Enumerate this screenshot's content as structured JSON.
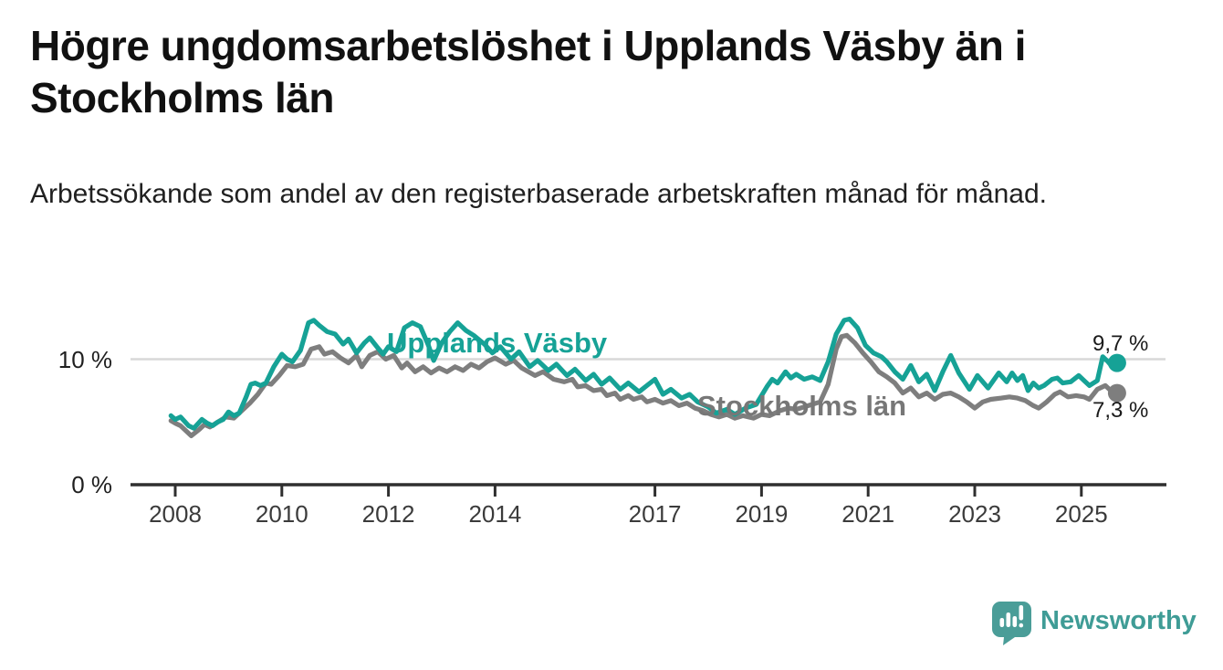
{
  "header": {
    "title": "Högre ungdomsarbetslöshet i Upplands Väsby än i Stockholms län",
    "subtitle": "Arbetssökande som andel av den registerbaserade arbetskraften månad för månad."
  },
  "branding": {
    "logo_text": "Newsworthy",
    "logo_icon": "newsworthy-speech-bubble-bar-chart-icon",
    "logo_color": "#4a9d98",
    "logo_text_color": "#3f9c96"
  },
  "chart_data": {
    "type": "line",
    "title": "Högre ungdomsarbetslöshet i Upplands Väsby än i Stockholms län",
    "subtitle": "Arbetssökande som andel av den registerbaserade arbetskraften månad för månad.",
    "unit": "%",
    "grid": "horizontal-10-only",
    "legend_position": "inline-on-lines",
    "xlim": [
      2007.8,
      2026.1
    ],
    "ylim": [
      0,
      14.5
    ],
    "x_axis": {
      "ticks": [
        {
          "year": 2008,
          "label": "2008"
        },
        {
          "year": 2010,
          "label": "2010"
        },
        {
          "year": 2012,
          "label": "2012"
        },
        {
          "year": 2014,
          "label": "2014"
        },
        {
          "year": 2017,
          "label": "2017"
        },
        {
          "year": 2019,
          "label": "2019"
        },
        {
          "year": 2021,
          "label": "2021"
        },
        {
          "year": 2023,
          "label": "2023"
        },
        {
          "year": 2025,
          "label": "2025"
        }
      ]
    },
    "y_axis": {
      "ticks": [
        {
          "value": 10,
          "label": "10 %"
        },
        {
          "value": 0,
          "label": "0 %"
        }
      ]
    },
    "series": [
      {
        "name": "Upplands Väsby",
        "color": "#16a296",
        "end_value": 9.7,
        "end_label": "9,7 %",
        "points": [
          [
            2007.92,
            5.5
          ],
          [
            2008.0,
            5.2
          ],
          [
            2008.1,
            5.4
          ],
          [
            2008.25,
            4.7
          ],
          [
            2008.35,
            4.5
          ],
          [
            2008.5,
            5.2
          ],
          [
            2008.6,
            4.9
          ],
          [
            2008.7,
            4.7
          ],
          [
            2008.8,
            5.0
          ],
          [
            2008.9,
            5.2
          ],
          [
            2009.0,
            5.8
          ],
          [
            2009.1,
            5.5
          ],
          [
            2009.2,
            5.7
          ],
          [
            2009.33,
            7.0
          ],
          [
            2009.42,
            8.0
          ],
          [
            2009.5,
            8.1
          ],
          [
            2009.6,
            7.9
          ],
          [
            2009.7,
            8.1
          ],
          [
            2009.85,
            9.4
          ],
          [
            2010.0,
            10.4
          ],
          [
            2010.1,
            10.0
          ],
          [
            2010.2,
            9.8
          ],
          [
            2010.35,
            10.7
          ],
          [
            2010.5,
            12.9
          ],
          [
            2010.6,
            13.1
          ],
          [
            2010.7,
            12.7
          ],
          [
            2010.85,
            12.2
          ],
          [
            2011.0,
            12.0
          ],
          [
            2011.15,
            11.2
          ],
          [
            2011.25,
            11.6
          ],
          [
            2011.4,
            10.5
          ],
          [
            2011.55,
            11.3
          ],
          [
            2011.65,
            11.7
          ],
          [
            2011.8,
            10.9
          ],
          [
            2011.9,
            10.4
          ],
          [
            2012.0,
            11.0
          ],
          [
            2012.15,
            10.6
          ],
          [
            2012.3,
            12.5
          ],
          [
            2012.45,
            12.9
          ],
          [
            2012.6,
            12.6
          ],
          [
            2012.75,
            11.1
          ],
          [
            2012.85,
            9.9
          ],
          [
            2013.0,
            11.3
          ],
          [
            2013.15,
            12.2
          ],
          [
            2013.3,
            12.9
          ],
          [
            2013.45,
            12.3
          ],
          [
            2013.6,
            11.9
          ],
          [
            2013.8,
            11.2
          ],
          [
            2013.95,
            10.5
          ],
          [
            2014.1,
            11.0
          ],
          [
            2014.3,
            10.0
          ],
          [
            2014.45,
            10.6
          ],
          [
            2014.65,
            9.4
          ],
          [
            2014.8,
            9.9
          ],
          [
            2015.0,
            9.1
          ],
          [
            2015.15,
            9.6
          ],
          [
            2015.35,
            8.7
          ],
          [
            2015.5,
            9.2
          ],
          [
            2015.7,
            8.3
          ],
          [
            2015.85,
            8.8
          ],
          [
            2016.0,
            8.0
          ],
          [
            2016.15,
            8.5
          ],
          [
            2016.35,
            7.6
          ],
          [
            2016.5,
            8.1
          ],
          [
            2016.7,
            7.4
          ],
          [
            2016.85,
            7.9
          ],
          [
            2017.0,
            8.4
          ],
          [
            2017.15,
            7.2
          ],
          [
            2017.3,
            7.6
          ],
          [
            2017.5,
            6.9
          ],
          [
            2017.65,
            7.2
          ],
          [
            2017.8,
            6.6
          ],
          [
            2018.0,
            6.2
          ],
          [
            2018.15,
            5.7
          ],
          [
            2018.35,
            6.0
          ],
          [
            2018.5,
            5.6
          ],
          [
            2018.7,
            6.1
          ],
          [
            2018.9,
            6.4
          ],
          [
            2019.1,
            7.8
          ],
          [
            2019.2,
            8.4
          ],
          [
            2019.3,
            8.1
          ],
          [
            2019.45,
            9.0
          ],
          [
            2019.55,
            8.5
          ],
          [
            2019.65,
            8.8
          ],
          [
            2019.8,
            8.4
          ],
          [
            2019.95,
            8.6
          ],
          [
            2020.1,
            8.3
          ],
          [
            2020.25,
            9.8
          ],
          [
            2020.4,
            12.0
          ],
          [
            2020.55,
            13.1
          ],
          [
            2020.65,
            13.2
          ],
          [
            2020.8,
            12.5
          ],
          [
            2020.95,
            11.1
          ],
          [
            2021.1,
            10.5
          ],
          [
            2021.25,
            10.2
          ],
          [
            2021.35,
            9.8
          ],
          [
            2021.5,
            9.0
          ],
          [
            2021.65,
            8.4
          ],
          [
            2021.8,
            9.5
          ],
          [
            2021.95,
            8.2
          ],
          [
            2022.1,
            8.8
          ],
          [
            2022.25,
            7.5
          ],
          [
            2022.4,
            9.0
          ],
          [
            2022.55,
            10.3
          ],
          [
            2022.7,
            8.9
          ],
          [
            2022.9,
            7.6
          ],
          [
            2023.05,
            8.7
          ],
          [
            2023.25,
            7.7
          ],
          [
            2023.45,
            8.9
          ],
          [
            2023.6,
            8.2
          ],
          [
            2023.7,
            8.9
          ],
          [
            2023.8,
            8.3
          ],
          [
            2023.9,
            8.7
          ],
          [
            2024.0,
            7.5
          ],
          [
            2024.1,
            8.1
          ],
          [
            2024.2,
            7.7
          ],
          [
            2024.3,
            7.9
          ],
          [
            2024.45,
            8.4
          ],
          [
            2024.55,
            8.5
          ],
          [
            2024.65,
            8.1
          ],
          [
            2024.8,
            8.2
          ],
          [
            2024.95,
            8.7
          ],
          [
            2025.05,
            8.3
          ],
          [
            2025.15,
            7.9
          ],
          [
            2025.3,
            8.3
          ],
          [
            2025.4,
            10.2
          ],
          [
            2025.5,
            9.8
          ],
          [
            2025.58,
            9.4
          ],
          [
            2025.67,
            9.7
          ]
        ]
      },
      {
        "name": "Stockholms län",
        "color": "#7e7e7e",
        "end_value": 7.3,
        "end_label": "7,3 %",
        "points": [
          [
            2007.92,
            5.1
          ],
          [
            2008.0,
            4.9
          ],
          [
            2008.1,
            4.7
          ],
          [
            2008.3,
            3.9
          ],
          [
            2008.45,
            4.4
          ],
          [
            2008.55,
            4.8
          ],
          [
            2008.65,
            4.6
          ],
          [
            2008.8,
            5.0
          ],
          [
            2008.95,
            5.4
          ],
          [
            2009.1,
            5.3
          ],
          [
            2009.25,
            5.9
          ],
          [
            2009.4,
            6.5
          ],
          [
            2009.55,
            7.2
          ],
          [
            2009.7,
            8.1
          ],
          [
            2009.8,
            8.0
          ],
          [
            2009.95,
            8.7
          ],
          [
            2010.1,
            9.5
          ],
          [
            2010.25,
            9.4
          ],
          [
            2010.4,
            9.6
          ],
          [
            2010.55,
            10.8
          ],
          [
            2010.7,
            11.0
          ],
          [
            2010.8,
            10.4
          ],
          [
            2010.95,
            10.6
          ],
          [
            2011.1,
            10.1
          ],
          [
            2011.25,
            9.7
          ],
          [
            2011.4,
            10.3
          ],
          [
            2011.5,
            9.4
          ],
          [
            2011.65,
            10.3
          ],
          [
            2011.8,
            10.6
          ],
          [
            2011.95,
            10.0
          ],
          [
            2012.1,
            10.3
          ],
          [
            2012.25,
            9.3
          ],
          [
            2012.35,
            9.7
          ],
          [
            2012.5,
            9.0
          ],
          [
            2012.65,
            9.4
          ],
          [
            2012.8,
            8.9
          ],
          [
            2012.95,
            9.3
          ],
          [
            2013.1,
            9.0
          ],
          [
            2013.25,
            9.4
          ],
          [
            2013.4,
            9.1
          ],
          [
            2013.55,
            9.6
          ],
          [
            2013.7,
            9.3
          ],
          [
            2013.85,
            9.8
          ],
          [
            2014.0,
            10.1
          ],
          [
            2014.2,
            9.6
          ],
          [
            2014.35,
            9.9
          ],
          [
            2014.5,
            9.3
          ],
          [
            2014.75,
            8.7
          ],
          [
            2014.9,
            9.0
          ],
          [
            2015.1,
            8.4
          ],
          [
            2015.3,
            8.2
          ],
          [
            2015.45,
            8.4
          ],
          [
            2015.55,
            7.8
          ],
          [
            2015.7,
            7.9
          ],
          [
            2015.85,
            7.5
          ],
          [
            2016.0,
            7.6
          ],
          [
            2016.1,
            7.1
          ],
          [
            2016.25,
            7.3
          ],
          [
            2016.35,
            6.8
          ],
          [
            2016.5,
            7.1
          ],
          [
            2016.6,
            6.8
          ],
          [
            2016.75,
            7.0
          ],
          [
            2016.85,
            6.6
          ],
          [
            2017.0,
            6.8
          ],
          [
            2017.15,
            6.5
          ],
          [
            2017.3,
            6.7
          ],
          [
            2017.45,
            6.3
          ],
          [
            2017.6,
            6.5
          ],
          [
            2017.75,
            6.1
          ],
          [
            2017.9,
            5.9
          ],
          [
            2018.05,
            5.6
          ],
          [
            2018.2,
            5.4
          ],
          [
            2018.35,
            5.6
          ],
          [
            2018.5,
            5.3
          ],
          [
            2018.65,
            5.5
          ],
          [
            2018.85,
            5.3
          ],
          [
            2019.0,
            5.6
          ],
          [
            2019.15,
            5.5
          ],
          [
            2019.35,
            5.9
          ],
          [
            2019.5,
            6.1
          ],
          [
            2019.65,
            6.0
          ],
          [
            2019.8,
            6.2
          ],
          [
            2019.95,
            6.4
          ],
          [
            2020.1,
            6.6
          ],
          [
            2020.25,
            8.0
          ],
          [
            2020.4,
            10.8
          ],
          [
            2020.5,
            11.8
          ],
          [
            2020.6,
            11.9
          ],
          [
            2020.75,
            11.3
          ],
          [
            2020.9,
            10.5
          ],
          [
            2021.05,
            9.8
          ],
          [
            2021.2,
            9.0
          ],
          [
            2021.35,
            8.6
          ],
          [
            2021.5,
            8.1
          ],
          [
            2021.65,
            7.3
          ],
          [
            2021.8,
            7.7
          ],
          [
            2021.95,
            7.0
          ],
          [
            2022.1,
            7.3
          ],
          [
            2022.25,
            6.8
          ],
          [
            2022.4,
            7.2
          ],
          [
            2022.55,
            7.3
          ],
          [
            2022.7,
            7.0
          ],
          [
            2022.85,
            6.6
          ],
          [
            2023.0,
            6.1
          ],
          [
            2023.15,
            6.6
          ],
          [
            2023.3,
            6.8
          ],
          [
            2023.5,
            6.9
          ],
          [
            2023.65,
            7.0
          ],
          [
            2023.8,
            6.9
          ],
          [
            2023.95,
            6.7
          ],
          [
            2024.1,
            6.3
          ],
          [
            2024.2,
            6.1
          ],
          [
            2024.35,
            6.6
          ],
          [
            2024.5,
            7.2
          ],
          [
            2024.6,
            7.4
          ],
          [
            2024.75,
            7.0
          ],
          [
            2024.9,
            7.1
          ],
          [
            2025.05,
            7.0
          ],
          [
            2025.15,
            6.8
          ],
          [
            2025.3,
            7.6
          ],
          [
            2025.45,
            7.9
          ],
          [
            2025.55,
            7.5
          ],
          [
            2025.67,
            7.3
          ]
        ]
      }
    ]
  }
}
